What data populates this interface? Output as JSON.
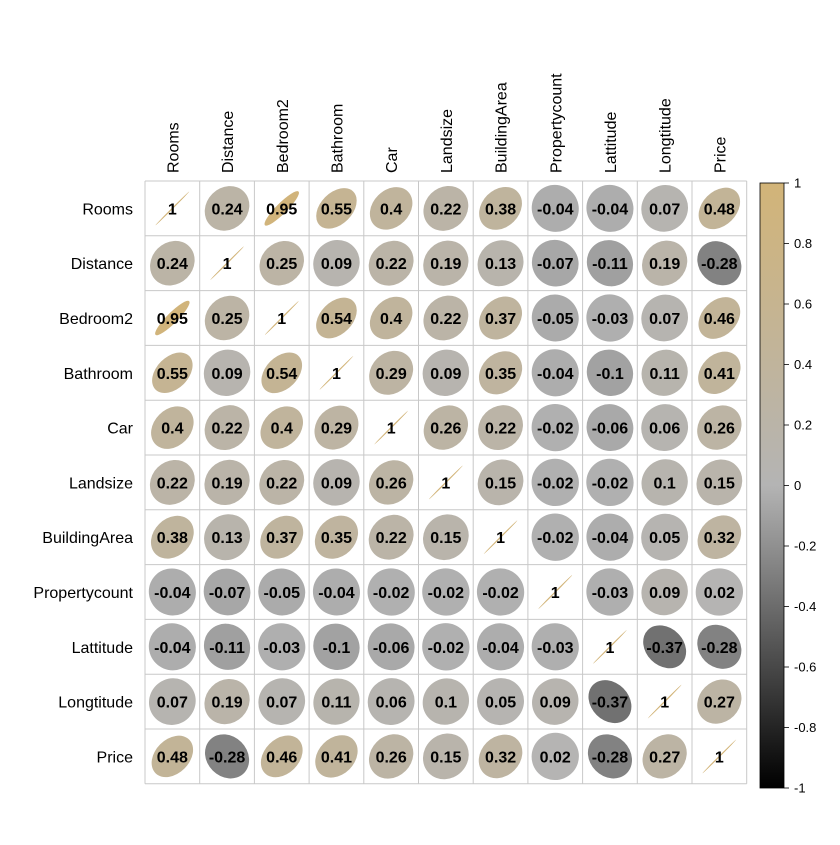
{
  "chart_data": {
    "type": "heatmap",
    "title": "",
    "variables": [
      "Rooms",
      "Distance",
      "Bedroom2",
      "Bathroom",
      "Car",
      "Landsize",
      "BuildingArea",
      "Propertycount",
      "Lattitude",
      "Longtitude",
      "Price"
    ],
    "matrix": [
      [
        1,
        0.24,
        0.95,
        0.55,
        0.4,
        0.22,
        0.38,
        -0.04,
        -0.04,
        0.07,
        0.48
      ],
      [
        0.24,
        1,
        0.25,
        0.09,
        0.22,
        0.19,
        0.13,
        -0.07,
        -0.11,
        0.19,
        -0.28
      ],
      [
        0.95,
        0.25,
        1,
        0.54,
        0.4,
        0.22,
        0.37,
        -0.05,
        -0.03,
        0.07,
        0.46
      ],
      [
        0.55,
        0.09,
        0.54,
        1,
        0.29,
        0.09,
        0.35,
        -0.04,
        -0.1,
        0.11,
        0.41
      ],
      [
        0.4,
        0.22,
        0.4,
        0.29,
        1,
        0.26,
        0.22,
        -0.02,
        -0.06,
        0.06,
        0.26
      ],
      [
        0.22,
        0.19,
        0.22,
        0.09,
        0.26,
        1,
        0.15,
        -0.02,
        -0.02,
        0.1,
        0.15
      ],
      [
        0.38,
        0.13,
        0.37,
        0.35,
        0.22,
        0.15,
        1,
        -0.02,
        -0.04,
        0.05,
        0.32
      ],
      [
        -0.04,
        -0.07,
        -0.05,
        -0.04,
        -0.02,
        -0.02,
        -0.02,
        1,
        -0.03,
        0.09,
        0.02
      ],
      [
        -0.04,
        -0.11,
        -0.03,
        -0.1,
        -0.06,
        -0.02,
        -0.04,
        -0.03,
        1,
        -0.37,
        -0.28
      ],
      [
        0.07,
        0.19,
        0.07,
        0.11,
        0.06,
        0.1,
        0.05,
        0.09,
        -0.37,
        1,
        0.27
      ],
      [
        0.48,
        -0.28,
        0.46,
        0.41,
        0.26,
        0.15,
        0.32,
        0.02,
        -0.28,
        0.27,
        1
      ]
    ],
    "value_range": [
      -1,
      1
    ],
    "colorbar_ticks": [
      "1",
      "0.8",
      "0.6",
      "0.4",
      "0.2",
      "0",
      "-0.2",
      "-0.4",
      "-0.6",
      "-0.8",
      "-1"
    ],
    "colorbar_tick_values": [
      1,
      0.8,
      0.6,
      0.4,
      0.2,
      0,
      -0.2,
      -0.4,
      -0.6,
      -0.8,
      -1
    ],
    "colors": {
      "negative_end": "#000000",
      "neutral": "#b4b4b4",
      "positive_end": "#d2b478",
      "grid": "#c8c8c8"
    },
    "legend_position": "right",
    "column_label_orientation": "vertical"
  }
}
